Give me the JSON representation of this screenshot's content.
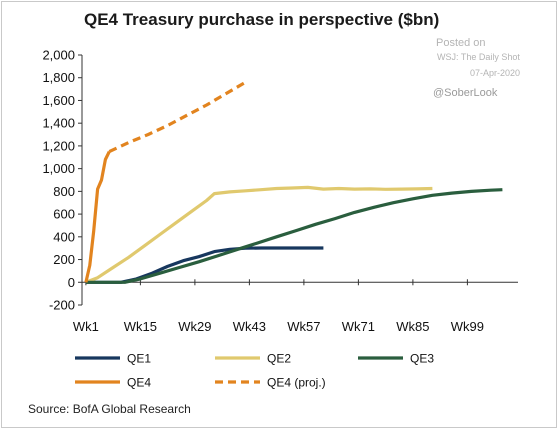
{
  "chart_data": {
    "type": "line",
    "title": "QE4 Treasury purchase in perspective ($bn)",
    "ylim": [
      -200,
      2000
    ],
    "xlim": [
      0,
      112
    ],
    "yticks": [
      -200,
      0,
      200,
      400,
      600,
      800,
      1000,
      1200,
      1400,
      1600,
      1800,
      2000
    ],
    "ytick_labels": [
      "-200",
      "0",
      "200",
      "400",
      "600",
      "800",
      "1,000",
      "1,200",
      "1,400",
      "1,600",
      "1,800",
      "2,000"
    ],
    "xticks": [
      1,
      15,
      29,
      43,
      57,
      71,
      85,
      99
    ],
    "xtick_labels": [
      "Wk1",
      "Wk15",
      "Wk29",
      "Wk43",
      "Wk57",
      "Wk71",
      "Wk85",
      "Wk99"
    ],
    "grid": false,
    "legend_placement": "bottom",
    "series": [
      {
        "name": "QE1",
        "color": "#17375e",
        "dash": false,
        "x": [
          1,
          5,
          10,
          14,
          18,
          22,
          26,
          30,
          34,
          38,
          42,
          46,
          50,
          54,
          58,
          62
        ],
        "y": [
          0,
          0,
          0,
          30,
          80,
          140,
          190,
          225,
          270,
          290,
          300,
          302,
          302,
          302,
          302,
          302
        ]
      },
      {
        "name": "QE2",
        "color": "#e0c96e",
        "dash": false,
        "x": [
          1,
          4,
          8,
          12,
          16,
          20,
          24,
          28,
          32,
          34,
          38,
          42,
          46,
          50,
          54,
          58,
          62,
          66,
          70,
          74,
          78,
          82,
          86,
          90
        ],
        "y": [
          0,
          40,
          130,
          220,
          320,
          420,
          520,
          620,
          720,
          780,
          795,
          805,
          815,
          825,
          830,
          835,
          820,
          825,
          820,
          822,
          818,
          820,
          822,
          825
        ]
      },
      {
        "name": "QE3",
        "color": "#2a5e3e",
        "dash": false,
        "x": [
          1,
          11,
          15,
          20,
          25,
          30,
          35,
          40,
          45,
          50,
          55,
          60,
          65,
          70,
          75,
          80,
          85,
          90,
          95,
          100,
          105,
          108
        ],
        "y": [
          0,
          0,
          30,
          80,
          130,
          180,
          235,
          290,
          345,
          400,
          455,
          510,
          560,
          615,
          660,
          700,
          735,
          765,
          785,
          800,
          810,
          815
        ]
      },
      {
        "name": "QE4",
        "color": "#e2841f",
        "dash": false,
        "x": [
          1,
          2,
          3,
          4,
          5,
          6,
          7
        ],
        "y": [
          0,
          150,
          450,
          820,
          900,
          1080,
          1150
        ]
      },
      {
        "name": "QE4 (proj.)",
        "color": "#e2841f",
        "dash": true,
        "x": [
          7,
          12,
          17,
          22,
          27,
          32,
          37,
          42
        ],
        "y": [
          1150,
          1230,
          1300,
          1380,
          1470,
          1560,
          1660,
          1760
        ]
      }
    ]
  },
  "source": "Source: BofA Global Research",
  "watermark": {
    "posted": "Posted on",
    "outlet": "WSJ: The Daily Shot",
    "date": "07-Apr-2020",
    "handle": "@SoberLook"
  }
}
